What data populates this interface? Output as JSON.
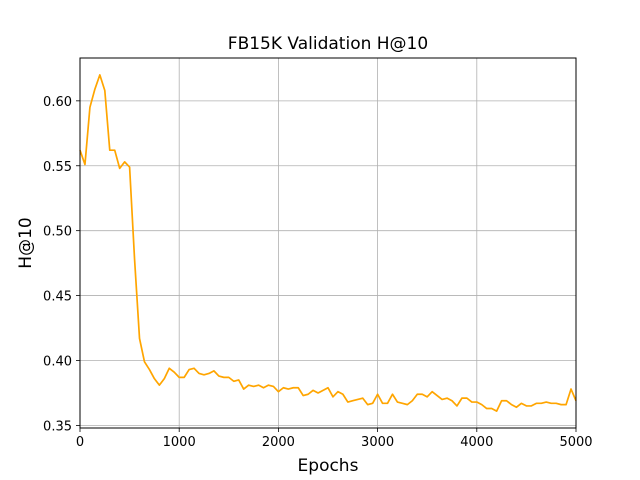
{
  "chart_data": {
    "type": "line",
    "title": "FB15K Validation H@10",
    "xlabel": "Epochs",
    "ylabel": "H@10",
    "xlim": [
      0,
      5000
    ],
    "ylim": [
      0.348,
      0.633
    ],
    "xticks": [
      0,
      1000,
      2000,
      3000,
      4000,
      5000
    ],
    "xtick_labels": [
      "0",
      "1000",
      "2000",
      "3000",
      "4000",
      "5000"
    ],
    "yticks": [
      0.35,
      0.4,
      0.45,
      0.5,
      0.55,
      0.6
    ],
    "ytick_labels": [
      "0.35",
      "0.40",
      "0.45",
      "0.50",
      "0.55",
      "0.60"
    ],
    "grid": true,
    "series": [
      {
        "color": "#ffa500",
        "x": [
          0,
          50,
          100,
          150,
          200,
          250,
          300,
          350,
          400,
          450,
          500,
          550,
          600,
          650,
          700,
          750,
          800,
          850,
          900,
          950,
          1000,
          1050,
          1100,
          1150,
          1200,
          1250,
          1300,
          1350,
          1400,
          1450,
          1500,
          1550,
          1600,
          1650,
          1700,
          1750,
          1800,
          1850,
          1900,
          1950,
          2000,
          2050,
          2100,
          2150,
          2200,
          2250,
          2300,
          2350,
          2400,
          2450,
          2500,
          2550,
          2600,
          2650,
          2700,
          2750,
          2800,
          2850,
          2900,
          2950,
          3000,
          3050,
          3100,
          3150,
          3200,
          3250,
          3300,
          3350,
          3400,
          3450,
          3500,
          3550,
          3600,
          3650,
          3700,
          3750,
          3800,
          3850,
          3900,
          3950,
          4000,
          4050,
          4100,
          4150,
          4200,
          4250,
          4300,
          4350,
          4400,
          4450,
          4500,
          4550,
          4600,
          4650,
          4700,
          4750,
          4800,
          4850,
          4900,
          4950,
          5000
        ],
        "y": [
          0.562,
          0.551,
          0.595,
          0.609,
          0.62,
          0.608,
          0.562,
          0.562,
          0.548,
          0.553,
          0.549,
          0.478,
          0.417,
          0.399,
          0.393,
          0.386,
          0.381,
          0.386,
          0.394,
          0.391,
          0.387,
          0.387,
          0.393,
          0.394,
          0.39,
          0.389,
          0.39,
          0.392,
          0.388,
          0.387,
          0.387,
          0.384,
          0.385,
          0.378,
          0.381,
          0.38,
          0.381,
          0.379,
          0.381,
          0.38,
          0.376,
          0.379,
          0.378,
          0.379,
          0.379,
          0.373,
          0.374,
          0.377,
          0.375,
          0.377,
          0.379,
          0.372,
          0.376,
          0.374,
          0.368,
          0.369,
          0.37,
          0.371,
          0.366,
          0.367,
          0.374,
          0.367,
          0.367,
          0.374,
          0.368,
          0.367,
          0.366,
          0.369,
          0.374,
          0.374,
          0.372,
          0.376,
          0.373,
          0.37,
          0.371,
          0.369,
          0.365,
          0.371,
          0.371,
          0.368,
          0.368,
          0.366,
          0.363,
          0.363,
          0.361,
          0.369,
          0.369,
          0.366,
          0.364,
          0.367,
          0.365,
          0.365,
          0.367,
          0.367,
          0.368,
          0.367,
          0.367,
          0.366,
          0.366,
          0.378,
          0.369
        ]
      }
    ]
  }
}
